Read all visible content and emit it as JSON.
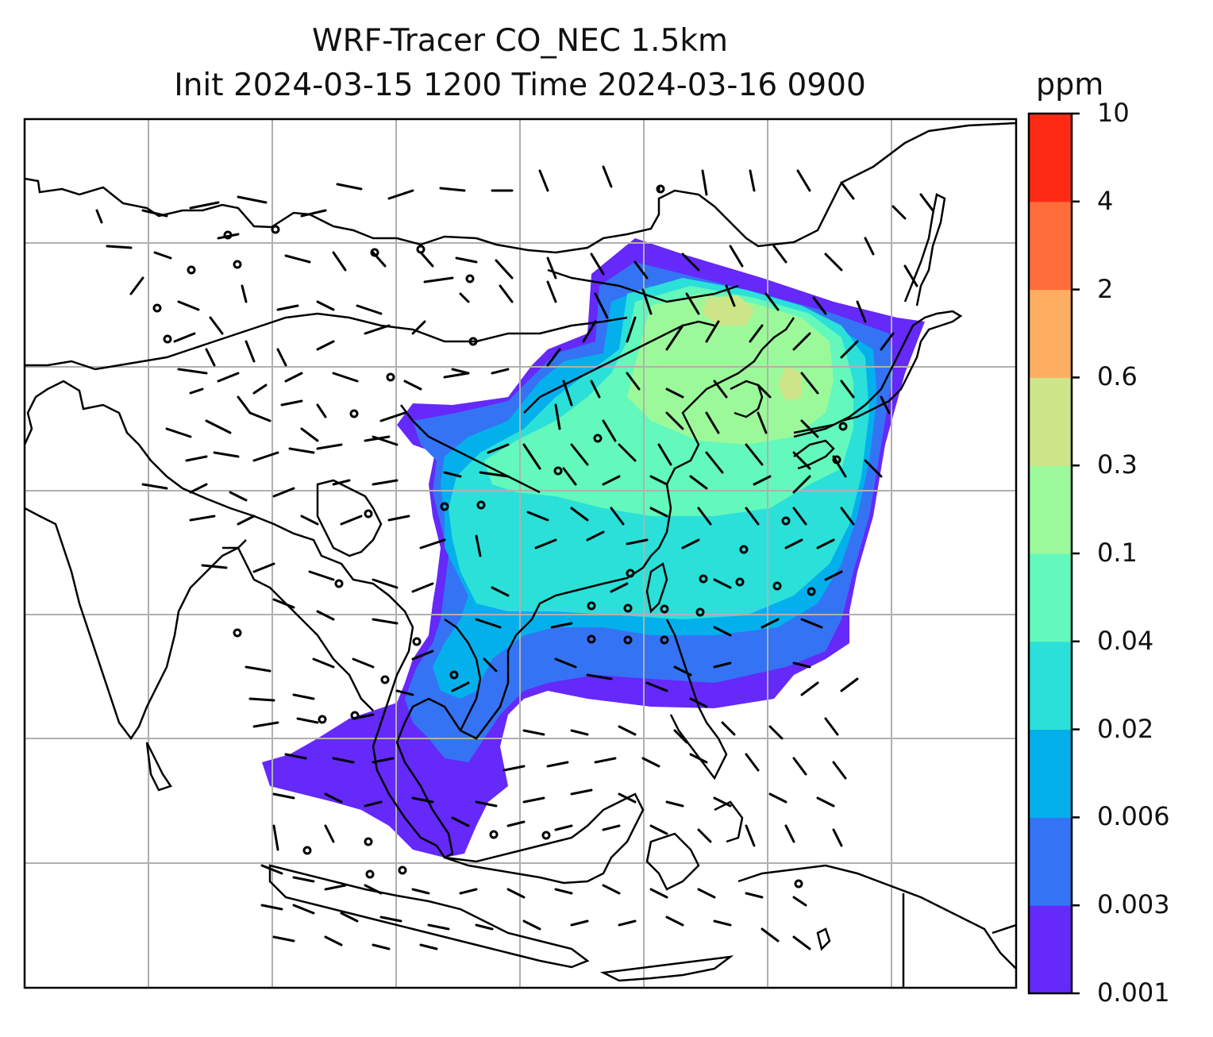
{
  "title": {
    "line1": "WRF-Tracer CO_NEC 1.5km",
    "line2": "Init 2024-03-15 1200 Time 2024-03-16 0900"
  },
  "colorbar": {
    "unit": "ppm",
    "levels": [
      "0.001",
      "0.003",
      "0.006",
      "0.02",
      "0.04",
      "0.1",
      "0.3",
      "0.6",
      "2",
      "4",
      "10"
    ],
    "colors": [
      "#6529fa",
      "#3474f4",
      "#04b0ec",
      "#2be0d8",
      "#63f8bc",
      "#9cf99a",
      "#cee488",
      "#fdae61",
      "#ff6e3a",
      "#ff2a16"
    ]
  },
  "map": {
    "gridlines": true,
    "coastlines": "black",
    "background": "#ffffff",
    "wind_barbs": true
  }
}
